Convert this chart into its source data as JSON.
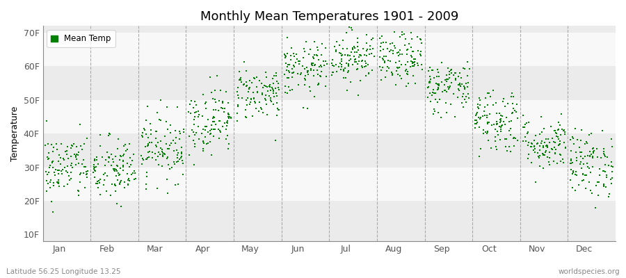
{
  "title": "Monthly Mean Temperatures 1901 - 2009",
  "ylabel": "Temperature",
  "xlabel_labels": [
    "Jan",
    "Feb",
    "Mar",
    "Apr",
    "May",
    "Jun",
    "Jul",
    "Aug",
    "Sep",
    "Oct",
    "Nov",
    "Dec"
  ],
  "subtitle_left": "Latitude 56.25 Longitude 13.25",
  "subtitle_right": "worldspecies.org",
  "ytick_labels": [
    "10F",
    "20F",
    "30F",
    "40F",
    "50F",
    "60F",
    "70F"
  ],
  "ytick_values": [
    10,
    20,
    30,
    40,
    50,
    60,
    70
  ],
  "ylim": [
    8,
    72
  ],
  "dot_color": "#008000",
  "dot_size": 3.5,
  "background_color": "#ffffff",
  "plot_bg_color": "#ebebeb",
  "band_colors_even": "#ebebeb",
  "band_colors_odd": "#f8f8f8",
  "grid_color": "#999999",
  "monthly_mean_F": [
    30,
    29,
    36,
    44,
    52,
    59,
    63,
    62,
    54,
    44,
    37,
    31
  ],
  "monthly_std_F": [
    5,
    5,
    5,
    5,
    4,
    4,
    4,
    4,
    4,
    5,
    4,
    5
  ],
  "n_years": 109,
  "seed": 42
}
